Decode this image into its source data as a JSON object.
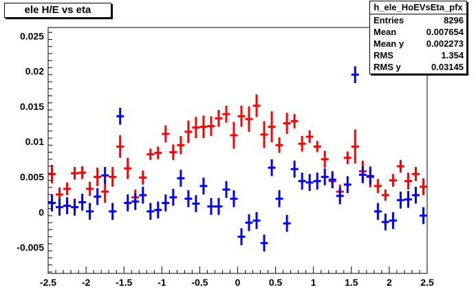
{
  "title": "ele H/E vs eta",
  "stats": {
    "name": "h_ele_HoEVsEta_pfx",
    "rows": [
      {
        "label": "Entries",
        "value": "8296"
      },
      {
        "label": "Mean",
        "value": "0.007654"
      },
      {
        "label": "Mean y",
        "value": "0.002273"
      },
      {
        "label": "RMS",
        "value": "1.354"
      },
      {
        "label": "RMS y",
        "value": "0.03145"
      }
    ]
  },
  "chart_data": {
    "type": "scatter",
    "title": "ele H/E vs eta",
    "xlabel": "",
    "ylabel": "",
    "xlim": [
      -2.5,
      2.5
    ],
    "ylim": [
      -0.0087,
      0.0262
    ],
    "xticks": [
      "-2.5",
      "-2",
      "-1.5",
      "-1",
      "-0.5",
      "0",
      "0.5",
      "1",
      "1.5",
      "2",
      "2.5"
    ],
    "yticks": [
      "-0.005",
      "0",
      "0.005",
      "0.01",
      "0.015",
      "0.02",
      "0.025"
    ],
    "grid": false,
    "x_bin_half_width": 0.05,
    "series": [
      {
        "color": "#ff0000",
        "x": [
          -2.45,
          -2.35,
          -2.25,
          -2.15,
          -2.05,
          -1.95,
          -1.85,
          -1.75,
          -1.65,
          -1.55,
          -1.45,
          -1.35,
          -1.25,
          -1.15,
          -1.05,
          -0.95,
          -0.85,
          -0.75,
          -0.65,
          -0.55,
          -0.45,
          -0.35,
          -0.25,
          -0.15,
          -0.05,
          0.05,
          0.15,
          0.25,
          0.35,
          0.45,
          0.55,
          0.65,
          0.75,
          0.85,
          0.95,
          1.05,
          1.15,
          1.25,
          1.35,
          1.45,
          1.55,
          1.65,
          1.75,
          1.85,
          1.95,
          2.05,
          2.15,
          2.25,
          2.35,
          2.45
        ],
        "y": [
          0.0054,
          0.0025,
          0.0033,
          0.0055,
          0.0056,
          0.0033,
          0.005,
          0.0029,
          0.005,
          0.0093,
          0.0062,
          0.0021,
          0.0049,
          0.0082,
          0.0084,
          0.0111,
          0.0085,
          0.0095,
          0.0114,
          0.012,
          0.0121,
          0.0122,
          0.0133,
          0.0139,
          0.0109,
          0.0136,
          0.0132,
          0.0151,
          0.011,
          0.0121,
          0.0095,
          0.0126,
          0.0129,
          0.0097,
          0.0107,
          0.0093,
          0.0075,
          0.0044,
          0.0029,
          0.0077,
          0.0093,
          0.0058,
          0.005,
          0.0037,
          0.0024,
          0.0045,
          0.0065,
          0.0044,
          0.0054,
          0.0036
        ],
        "err": [
          0.0013,
          0.001,
          0.0009,
          0.0009,
          0.0009,
          0.001,
          0.0013,
          0.0016,
          0.0014,
          0.0016,
          0.0015,
          0.0011,
          0.001,
          0.0008,
          0.0009,
          0.0012,
          0.0011,
          0.0013,
          0.0016,
          0.0015,
          0.0016,
          0.0014,
          0.0012,
          0.0012,
          0.0019,
          0.0015,
          0.0018,
          0.0016,
          0.0019,
          0.0022,
          0.0011,
          0.0015,
          0.001,
          0.0011,
          0.0009,
          0.0008,
          0.0012,
          0.001,
          0.001,
          0.0009,
          0.0024,
          0.0015,
          0.0015,
          0.001,
          0.0008,
          0.0009,
          0.0009,
          0.0012,
          0.001,
          0.0012
        ]
      },
      {
        "color": "#0000ff",
        "x": [
          -2.45,
          -2.35,
          -2.25,
          -2.15,
          -2.05,
          -1.95,
          -1.85,
          -1.75,
          -1.65,
          -1.55,
          -1.45,
          -1.35,
          -1.25,
          -1.15,
          -1.05,
          -0.95,
          -0.85,
          -0.75,
          -0.65,
          -0.55,
          -0.45,
          -0.35,
          -0.25,
          -0.15,
          -0.05,
          0.05,
          0.15,
          0.25,
          0.35,
          0.45,
          0.55,
          0.65,
          0.75,
          0.85,
          0.95,
          1.05,
          1.15,
          1.25,
          1.35,
          1.45,
          1.55,
          1.65,
          1.75,
          1.85,
          1.95,
          2.05,
          2.15,
          2.25,
          2.35,
          2.45
        ],
        "y": [
          0.0013,
          0.0007,
          0.0009,
          0.0007,
          0.0014,
          0.0001,
          0.0022,
          0.0052,
          0.0001,
          0.0136,
          0.0013,
          0.0015,
          0.0024,
          0.0001,
          0.0003,
          0.0013,
          0.0021,
          0.0048,
          0.0019,
          0.0012,
          0.0037,
          0.0008,
          0.0008,
          0.0032,
          0.0019,
          -0.0035,
          -0.0015,
          -0.0012,
          -0.0044,
          0.0063,
          0.0019,
          -0.0016,
          0.0061,
          0.0044,
          0.0042,
          0.0044,
          0.005,
          0.0046,
          0.0023,
          0.0039,
          0.0195,
          0.0053,
          0.0051,
          0.0001,
          -0.0014,
          -0.0012,
          0.0017,
          0.0018,
          0.0024,
          -0.0005
        ]
      }
    ]
  }
}
